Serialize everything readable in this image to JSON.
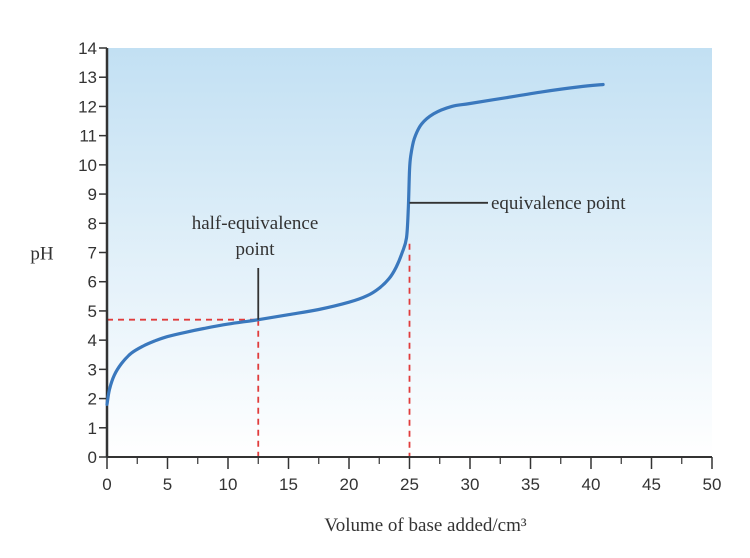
{
  "chart_data": {
    "type": "line",
    "title": "",
    "xlabel": "Volume of base added/cm³",
    "ylabel": "pH",
    "xlim": [
      0,
      50
    ],
    "ylim": [
      0,
      14
    ],
    "xticks": [
      0,
      5,
      10,
      15,
      20,
      25,
      30,
      35,
      40,
      45,
      50
    ],
    "yticks": [
      0,
      1,
      2,
      3,
      4,
      5,
      6,
      7,
      8,
      9,
      10,
      11,
      12,
      13,
      14
    ],
    "grid": false,
    "background": "light-blue gradient",
    "series": [
      {
        "name": "",
        "color": "#3a78bd",
        "points": [
          [
            0,
            1.8
          ],
          [
            0.2,
            2.3
          ],
          [
            0.6,
            2.8
          ],
          [
            1.2,
            3.2
          ],
          [
            2,
            3.55
          ],
          [
            3,
            3.8
          ],
          [
            4,
            3.98
          ],
          [
            5,
            4.12
          ],
          [
            6.5,
            4.27
          ],
          [
            8,
            4.4
          ],
          [
            10,
            4.55
          ],
          [
            12.5,
            4.7
          ],
          [
            15,
            4.87
          ],
          [
            17.5,
            5.05
          ],
          [
            20,
            5.3
          ],
          [
            21.5,
            5.52
          ],
          [
            22.5,
            5.78
          ],
          [
            23.3,
            6.1
          ],
          [
            23.9,
            6.5
          ],
          [
            24.4,
            7.0
          ],
          [
            24.75,
            7.5
          ],
          [
            24.9,
            8.5
          ],
          [
            25,
            9.8
          ],
          [
            25.1,
            10.3
          ],
          [
            25.4,
            10.9
          ],
          [
            26,
            11.4
          ],
          [
            27,
            11.75
          ],
          [
            28.5,
            12.0
          ],
          [
            30,
            12.1
          ],
          [
            33,
            12.3
          ],
          [
            36,
            12.5
          ],
          [
            39,
            12.67
          ],
          [
            41,
            12.75
          ]
        ]
      }
    ],
    "annotations": [
      {
        "label_lines": [
          "half-equivalence",
          "point"
        ],
        "x": 12.5,
        "y": 4.7,
        "guide": "dashed lines to both axes"
      },
      {
        "label_lines": [
          "equivalence point"
        ],
        "x": 25,
        "y": 8.7,
        "guide": "dashed line to x-axis from pH 7.3"
      }
    ],
    "colors": {
      "curve": "#3a78bd",
      "guide": "#e03c3c",
      "axis": "#333333"
    }
  }
}
